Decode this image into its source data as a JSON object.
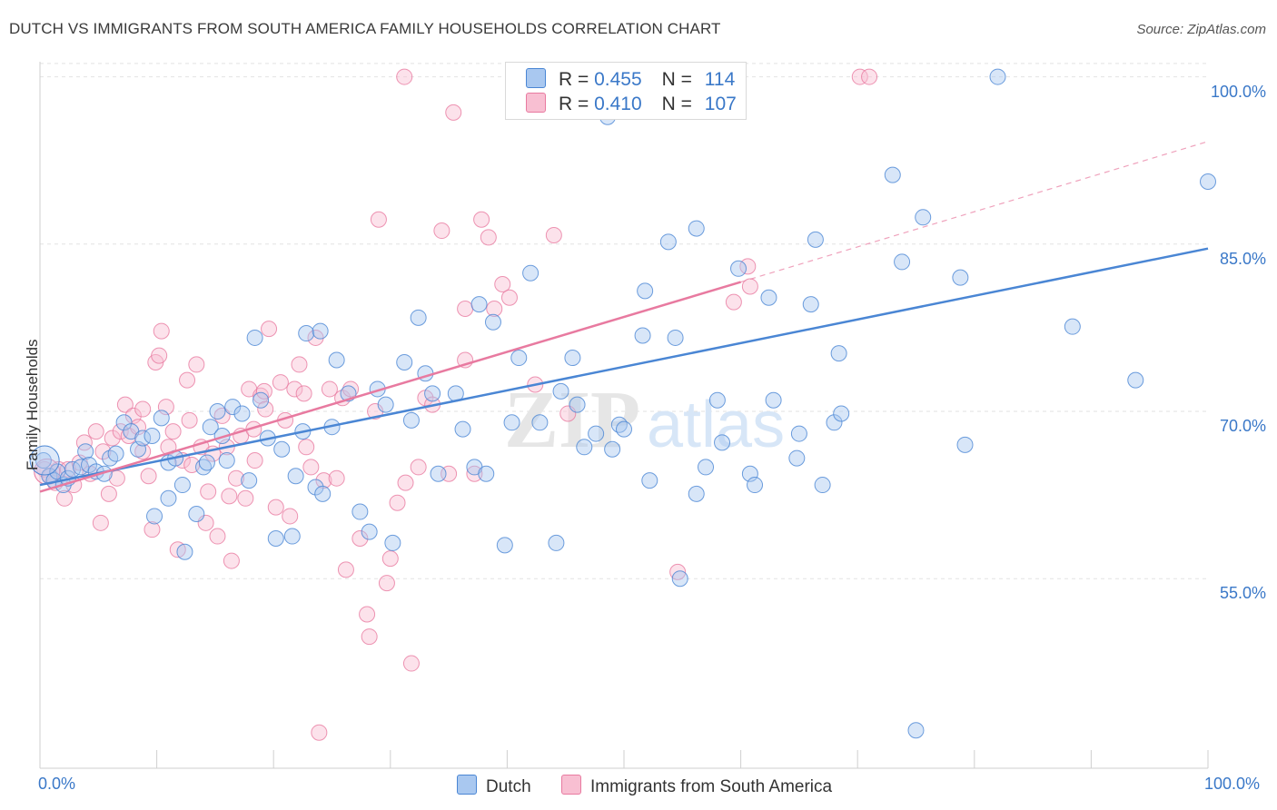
{
  "title": "DUTCH VS IMMIGRANTS FROM SOUTH AMERICA FAMILY HOUSEHOLDS CORRELATION CHART",
  "source": "Source: ZipAtlas.com",
  "watermark": "ZIPatlas",
  "legend_top": {
    "rows": [
      {
        "r_label": "R = ",
        "r_value": "0.455",
        "n_label": "N = ",
        "n_value": "114"
      },
      {
        "r_label": "R = ",
        "r_value": "0.410",
        "n_label": "N = ",
        "n_value": "107"
      }
    ]
  },
  "chart_data": {
    "type": "scatter",
    "title": "DUTCH VS IMMIGRANTS FROM SOUTH AMERICA FAMILY HOUSEHOLDS CORRELATION CHART",
    "xlabel": "",
    "ylabel": "Family Households",
    "xlim": [
      0,
      100
    ],
    "ylim": [
      38,
      102
    ],
    "x_tick_labels": [
      "0.0%",
      "100.0%"
    ],
    "y_tick_labels": [
      "100.0%",
      "85.0%",
      "70.0%",
      "55.0%"
    ],
    "y_ticks": [
      100,
      85,
      70,
      55
    ],
    "grid": true,
    "legend_position": "top-center",
    "series": [
      {
        "name": "Dutch",
        "color": "#4a86d4",
        "fill": "#a9c8f0",
        "r": 0.455,
        "n": 114,
        "trend": [
          [
            0,
            63.4
          ],
          [
            100,
            84.6
          ]
        ],
        "points": [
          [
            0.3,
            65.6
          ],
          [
            0.8,
            64.2
          ],
          [
            1.2,
            63.8
          ],
          [
            1.5,
            64.6
          ],
          [
            2.0,
            63.4
          ],
          [
            2.4,
            64.0
          ],
          [
            2.8,
            64.8
          ],
          [
            3.5,
            65.0
          ],
          [
            3.9,
            66.4
          ],
          [
            4.2,
            65.2
          ],
          [
            4.8,
            64.6
          ],
          [
            5.5,
            64.4
          ],
          [
            6.0,
            65.8
          ],
          [
            6.5,
            66.2
          ],
          [
            7.2,
            69.0
          ],
          [
            7.8,
            68.2
          ],
          [
            8.4,
            66.6
          ],
          [
            8.8,
            67.6
          ],
          [
            9.6,
            67.8
          ],
          [
            10.4,
            69.4
          ],
          [
            11.0,
            65.4
          ],
          [
            11.6,
            65.8
          ],
          [
            12.2,
            63.4
          ],
          [
            9.8,
            60.6
          ],
          [
            11.0,
            62.2
          ],
          [
            12.4,
            57.4
          ],
          [
            13.4,
            60.8
          ],
          [
            14.0,
            65.0
          ],
          [
            14.3,
            65.4
          ],
          [
            14.6,
            68.6
          ],
          [
            15.2,
            70.0
          ],
          [
            15.6,
            67.8
          ],
          [
            16.0,
            65.6
          ],
          [
            16.5,
            70.4
          ],
          [
            17.3,
            69.8
          ],
          [
            17.9,
            63.8
          ],
          [
            18.4,
            76.6
          ],
          [
            18.9,
            71.0
          ],
          [
            19.5,
            67.6
          ],
          [
            20.2,
            58.6
          ],
          [
            20.7,
            66.6
          ],
          [
            21.6,
            58.8
          ],
          [
            21.9,
            64.2
          ],
          [
            22.5,
            68.2
          ],
          [
            22.8,
            77.0
          ],
          [
            23.6,
            63.2
          ],
          [
            24.0,
            77.2
          ],
          [
            24.2,
            62.6
          ],
          [
            25.0,
            68.6
          ],
          [
            25.4,
            74.6
          ],
          [
            26.4,
            71.6
          ],
          [
            27.4,
            61.0
          ],
          [
            28.2,
            59.2
          ],
          [
            28.9,
            72.0
          ],
          [
            29.6,
            70.6
          ],
          [
            30.2,
            58.2
          ],
          [
            31.2,
            74.4
          ],
          [
            31.8,
            69.2
          ],
          [
            32.4,
            78.4
          ],
          [
            33.0,
            73.4
          ],
          [
            33.6,
            71.6
          ],
          [
            34.1,
            64.4
          ],
          [
            35.6,
            71.6
          ],
          [
            36.2,
            68.4
          ],
          [
            37.2,
            65.0
          ],
          [
            37.6,
            79.6
          ],
          [
            38.2,
            64.4
          ],
          [
            38.8,
            78.0
          ],
          [
            39.8,
            58.0
          ],
          [
            40.4,
            69.0
          ],
          [
            41.0,
            74.8
          ],
          [
            42.0,
            82.4
          ],
          [
            42.8,
            69.0
          ],
          [
            44.2,
            58.2
          ],
          [
            44.6,
            71.8
          ],
          [
            45.6,
            74.8
          ],
          [
            46.0,
            70.6
          ],
          [
            46.6,
            66.8
          ],
          [
            47.6,
            68.0
          ],
          [
            48.6,
            96.4
          ],
          [
            49.0,
            66.6
          ],
          [
            49.6,
            68.8
          ],
          [
            50.0,
            68.4
          ],
          [
            51.6,
            76.8
          ],
          [
            51.8,
            80.8
          ],
          [
            52.2,
            63.8
          ],
          [
            53.8,
            85.2
          ],
          [
            54.4,
            76.6
          ],
          [
            54.8,
            55.0
          ],
          [
            56.2,
            86.4
          ],
          [
            56.2,
            62.6
          ],
          [
            57.0,
            65.0
          ],
          [
            58.0,
            71.0
          ],
          [
            58.4,
            67.2
          ],
          [
            59.8,
            82.8
          ],
          [
            60.8,
            64.4
          ],
          [
            61.2,
            63.4
          ],
          [
            62.4,
            80.2
          ],
          [
            62.8,
            71.0
          ],
          [
            64.8,
            65.8
          ],
          [
            65.0,
            68.0
          ],
          [
            66.0,
            79.6
          ],
          [
            66.4,
            85.4
          ],
          [
            67.0,
            63.4
          ],
          [
            68.0,
            69.0
          ],
          [
            68.4,
            75.2
          ],
          [
            68.6,
            69.8
          ],
          [
            73.0,
            91.2
          ],
          [
            73.8,
            83.4
          ],
          [
            75.6,
            87.4
          ],
          [
            75.0,
            41.4
          ],
          [
            78.8,
            82.0
          ],
          [
            79.2,
            67.0
          ],
          [
            88.4,
            77.6
          ],
          [
            93.8,
            72.8
          ],
          [
            100.0,
            90.6
          ],
          [
            82.0,
            100.0
          ]
        ]
      },
      {
        "name": "Immigrants from South America",
        "color": "#e87aa0",
        "fill": "#f8bfd2",
        "r": 0.41,
        "n": 107,
        "trend": [
          [
            0,
            62.8
          ],
          [
            60,
            81.6
          ]
        ],
        "trend_dashed": [
          [
            60,
            81.6
          ],
          [
            100,
            94.2
          ]
        ],
        "points": [
          [
            0.4,
            64.8
          ],
          [
            0.9,
            64.2
          ],
          [
            1.3,
            63.6
          ],
          [
            1.6,
            64.8
          ],
          [
            2.1,
            62.2
          ],
          [
            2.4,
            64.8
          ],
          [
            2.9,
            63.4
          ],
          [
            3.4,
            65.4
          ],
          [
            3.8,
            67.2
          ],
          [
            4.3,
            64.4
          ],
          [
            4.8,
            68.2
          ],
          [
            5.4,
            66.4
          ],
          [
            5.2,
            60.0
          ],
          [
            5.9,
            62.6
          ],
          [
            6.2,
            67.6
          ],
          [
            6.6,
            64.0
          ],
          [
            6.9,
            68.2
          ],
          [
            7.3,
            70.6
          ],
          [
            7.6,
            67.8
          ],
          [
            8.0,
            69.6
          ],
          [
            8.4,
            68.6
          ],
          [
            8.8,
            70.2
          ],
          [
            8.8,
            66.4
          ],
          [
            9.3,
            64.2
          ],
          [
            9.6,
            59.4
          ],
          [
            9.9,
            74.4
          ],
          [
            10.2,
            75.0
          ],
          [
            10.4,
            77.2
          ],
          [
            10.8,
            70.4
          ],
          [
            11.0,
            66.8
          ],
          [
            11.4,
            68.2
          ],
          [
            11.8,
            57.6
          ],
          [
            12.2,
            65.6
          ],
          [
            12.6,
            72.8
          ],
          [
            12.8,
            69.2
          ],
          [
            13.0,
            65.2
          ],
          [
            13.4,
            74.2
          ],
          [
            13.8,
            66.8
          ],
          [
            14.2,
            60.0
          ],
          [
            14.4,
            62.8
          ],
          [
            14.8,
            66.2
          ],
          [
            15.2,
            58.8
          ],
          [
            15.6,
            69.6
          ],
          [
            16.0,
            66.8
          ],
          [
            16.2,
            62.4
          ],
          [
            16.4,
            56.6
          ],
          [
            16.8,
            64.0
          ],
          [
            17.2,
            67.8
          ],
          [
            17.6,
            62.2
          ],
          [
            17.9,
            72.0
          ],
          [
            18.3,
            68.4
          ],
          [
            18.4,
            65.6
          ],
          [
            18.9,
            71.4
          ],
          [
            19.2,
            71.8
          ],
          [
            19.3,
            70.2
          ],
          [
            19.6,
            77.4
          ],
          [
            20.2,
            61.4
          ],
          [
            20.6,
            72.6
          ],
          [
            21.0,
            69.2
          ],
          [
            21.4,
            60.6
          ],
          [
            21.8,
            72.0
          ],
          [
            22.2,
            74.2
          ],
          [
            22.6,
            71.6
          ],
          [
            22.8,
            66.8
          ],
          [
            23.2,
            65.0
          ],
          [
            23.6,
            76.6
          ],
          [
            23.9,
            41.2
          ],
          [
            24.3,
            63.8
          ],
          [
            24.8,
            72.0
          ],
          [
            25.4,
            64.0
          ],
          [
            25.9,
            71.2
          ],
          [
            26.2,
            55.8
          ],
          [
            26.6,
            72.0
          ],
          [
            27.4,
            58.6
          ],
          [
            28.0,
            51.8
          ],
          [
            28.2,
            49.8
          ],
          [
            28.7,
            70.0
          ],
          [
            29.0,
            87.2
          ],
          [
            29.7,
            54.6
          ],
          [
            30.0,
            56.8
          ],
          [
            30.6,
            61.8
          ],
          [
            31.2,
            100.0
          ],
          [
            31.3,
            63.6
          ],
          [
            31.8,
            47.4
          ],
          [
            32.4,
            65.0
          ],
          [
            33.0,
            71.2
          ],
          [
            33.6,
            70.6
          ],
          [
            34.4,
            86.2
          ],
          [
            35.0,
            64.4
          ],
          [
            35.4,
            96.8
          ],
          [
            36.4,
            79.2
          ],
          [
            37.2,
            64.4
          ],
          [
            37.8,
            87.2
          ],
          [
            38.4,
            85.6
          ],
          [
            38.9,
            79.2
          ],
          [
            39.6,
            81.4
          ],
          [
            40.2,
            80.2
          ],
          [
            42.4,
            72.4
          ],
          [
            44.0,
            85.8
          ],
          [
            45.2,
            69.8
          ],
          [
            54.6,
            55.6
          ],
          [
            59.4,
            79.8
          ],
          [
            60.6,
            83.0
          ],
          [
            60.8,
            81.2
          ],
          [
            70.2,
            100.0
          ],
          [
            71.0,
            100.0
          ],
          [
            36.4,
            74.6
          ]
        ]
      }
    ]
  },
  "legend_bottom": {
    "items": [
      {
        "label": "Dutch"
      },
      {
        "label": "Immigrants from South America"
      }
    ]
  },
  "colors": {
    "blue": "#4a86d4",
    "blue_fill": "#a9c8f0",
    "pink": "#e87aa0",
    "pink_fill": "#f8bfd2",
    "tick_text": "#3a78c8",
    "grid": "#e2e2e2"
  }
}
